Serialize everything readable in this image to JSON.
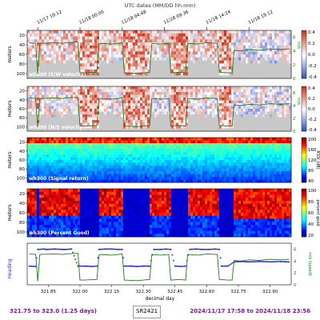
{
  "top_axis": {
    "label": "UTC dates (MM/DD hh:mm)",
    "ticks": [
      "11/17 19:12",
      "11/18 00:00",
      "11/18 04:48",
      "11/18 09:36",
      "11/18 14:24",
      "11/18 19:12"
    ]
  },
  "footer": {
    "left": "321.75 to 323.0 (1.25 days)",
    "middle": "SR2421",
    "right": "2024/11/17 17:58 to 2024/11/18 23:56"
  },
  "colors": {
    "ship_speed_line": "#1f7a1f",
    "heading_dots": "#1f1fd0",
    "footer_text": "#7a1a8c",
    "bottom_mask": "#c8c8c8"
  },
  "chart_data": [
    {
      "type": "heatmap",
      "panel_label": "wh300 (E/W velocity)",
      "ylabel": "meters",
      "y_ticks": [
        "20",
        "40",
        "60",
        "80",
        "100"
      ],
      "ylim": [
        110,
        10
      ],
      "colorbar_ticks": [
        "0.4",
        "0.2",
        "0.0",
        "-0.2",
        "-0.4"
      ],
      "colorbar_range": [
        -0.4,
        0.4
      ],
      "colormap": "blue-white-red",
      "right_axis_label": "m/s",
      "right_ticks": [
        "0",
        "2",
        "4",
        "6"
      ],
      "overlay": "ship speed"
    },
    {
      "type": "heatmap",
      "panel_label": "wh300 (N/S velocity)",
      "ylabel": "meters",
      "y_ticks": [
        "20",
        "40",
        "60",
        "80",
        "100"
      ],
      "ylim": [
        110,
        10
      ],
      "colorbar_ticks": [
        "0.4",
        "0.2",
        "0.0",
        "-0.2",
        "-0.4"
      ],
      "colorbar_range": [
        -0.4,
        0.4
      ],
      "colormap": "blue-white-red",
      "right_axis_label": "m/s",
      "right_ticks": [
        "0",
        "2",
        "4",
        "6"
      ],
      "overlay": "ship speed"
    },
    {
      "type": "heatmap",
      "panel_label": "wh300 (Signal return)",
      "ylabel": "meters",
      "y_ticks": [
        "20",
        "40",
        "60",
        "80",
        "100"
      ],
      "ylim": [
        110,
        10
      ],
      "colorbar_label": "RSSI (dB)",
      "colorbar_ticks": [
        "200",
        "160",
        "120",
        "80",
        "40"
      ],
      "colorbar_range": [
        0,
        200
      ],
      "colormap": "jet"
    },
    {
      "type": "heatmap",
      "panel_label": "wh300 (Percent Good)",
      "ylabel": "meters",
      "y_ticks": [
        "20",
        "40",
        "60",
        "80",
        "100"
      ],
      "ylim": [
        110,
        10
      ],
      "colorbar_label": "percent good",
      "colorbar_ticks": [
        "100",
        "80",
        "60",
        "40",
        "20"
      ],
      "colorbar_range": [
        0,
        100
      ],
      "colormap": "jet"
    },
    {
      "type": "line",
      "xlabel": "decimal day",
      "x_ticks": [
        "321.85",
        "322.00",
        "322.15",
        "322.30",
        "322.45",
        "322.60",
        "322.75",
        "322.90"
      ],
      "xlim": [
        321.75,
        323.0
      ],
      "left_label": "Heading",
      "right_label": "m/s (speed)",
      "right_ticks": [
        "0",
        "2",
        "4",
        "6"
      ],
      "series": [
        {
          "name": "Heading",
          "x": [
            321.76,
            321.79,
            321.8,
            321.83,
            321.84,
            321.88,
            321.92,
            321.93,
            321.96,
            321.99,
            322.0,
            322.02,
            322.06,
            322.08,
            322.09,
            322.12,
            322.15,
            322.18,
            322.2,
            322.21,
            322.24,
            322.27,
            322.3,
            322.33,
            322.35,
            322.38,
            322.41,
            322.43,
            322.45,
            322.48,
            322.5,
            322.52,
            322.55,
            322.58,
            322.61,
            322.64,
            322.66,
            322.67,
            322.7,
            322.73,
            322.76,
            322.8,
            322.85,
            322.9,
            322.95,
            322.99
          ],
          "y": [
            0.55,
            0.56,
            0.15,
            0.14,
            0.15,
            0.14,
            0.15,
            0.15,
            0.14,
            0.55,
            0.55,
            0.55,
            0.56,
            0.55,
            0.15,
            0.14,
            0.14,
            0.15,
            0.15,
            0.55,
            0.55,
            0.56,
            0.55,
            0.55,
            0.15,
            0.15,
            0.14,
            0.15,
            0.55,
            0.56,
            0.55,
            0.15,
            0.14,
            0.15,
            0.15,
            0.14,
            0.15,
            0.55,
            0.55,
            0.45,
            0.44,
            0.45,
            0.44,
            0.45,
            0.44,
            0.45
          ]
        },
        {
          "name": "Ship speed",
          "x": [
            321.76,
            321.79,
            321.8,
            321.81,
            321.88,
            321.92,
            321.93,
            321.99,
            322.0,
            322.02,
            322.08,
            322.09,
            322.1,
            322.15,
            322.18,
            322.2,
            322.21,
            322.27,
            322.3,
            322.33,
            322.34,
            322.38,
            322.42,
            322.43,
            322.47,
            322.5,
            322.51,
            322.56,
            322.6,
            322.65,
            322.66,
            322.7,
            322.72,
            322.73,
            322.76,
            322.8,
            322.85,
            322.9,
            322.95,
            322.99
          ],
          "y": [
            5.2,
            5.1,
            0.6,
            5.1,
            5.2,
            5.1,
            5.2,
            5.3,
            0.8,
            0.8,
            0.9,
            5.0,
            5.1,
            5.0,
            5.1,
            5.2,
            0.8,
            0.7,
            0.8,
            0.9,
            5.1,
            5.0,
            5.1,
            0.8,
            0.9,
            0.8,
            5.1,
            5.0,
            5.2,
            5.1,
            0.9,
            0.8,
            0.8,
            4.1,
            4.0,
            4.2,
            4.1,
            4.3,
            4.2,
            4.3
          ]
        }
      ]
    }
  ]
}
